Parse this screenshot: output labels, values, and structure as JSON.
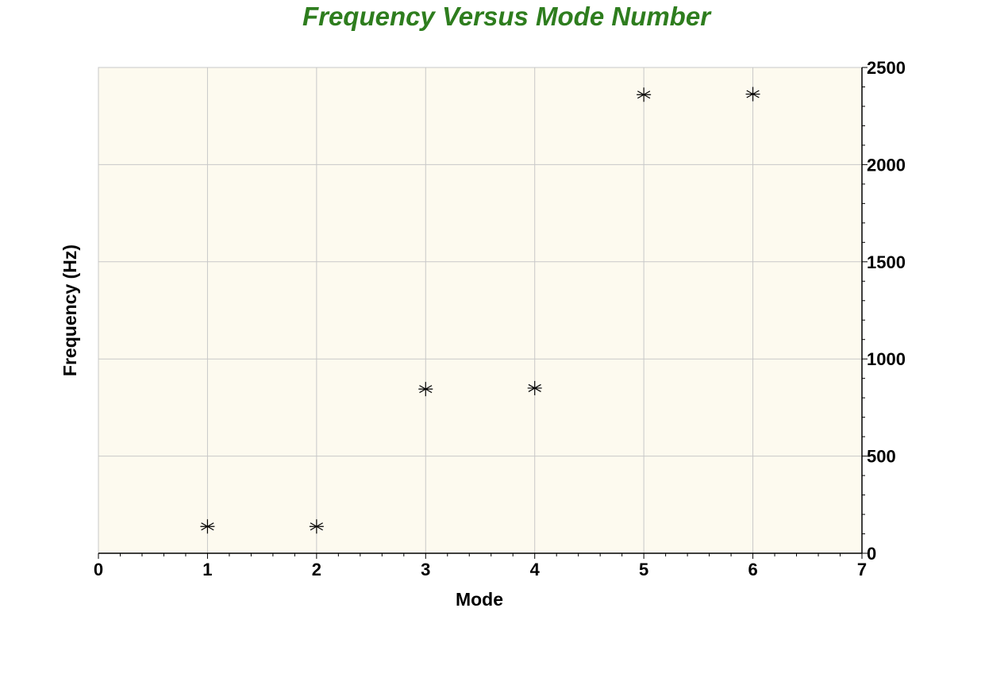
{
  "chart_data": {
    "type": "scatter",
    "title": "Frequency Versus Mode Number",
    "xlabel": "Mode",
    "ylabel": "Frequency (Hz)",
    "xlim": [
      0,
      7
    ],
    "ylim": [
      0,
      2500
    ],
    "x_ticks": [
      0,
      1,
      2,
      3,
      4,
      5,
      6,
      7
    ],
    "y_ticks": [
      0,
      500,
      1000,
      1500,
      2000,
      2500
    ],
    "y_axis_side": "right",
    "grid": true,
    "marker": "asterisk",
    "series": [
      {
        "x": [
          1,
          2,
          3,
          4,
          5,
          6
        ],
        "y": [
          138,
          138,
          845,
          850,
          2360,
          2363
        ]
      }
    ],
    "colors": {
      "title": "#2e7d1e",
      "plot_background": "#fdfaef",
      "grid": "#c8c8c8",
      "marker": "#000000"
    }
  }
}
